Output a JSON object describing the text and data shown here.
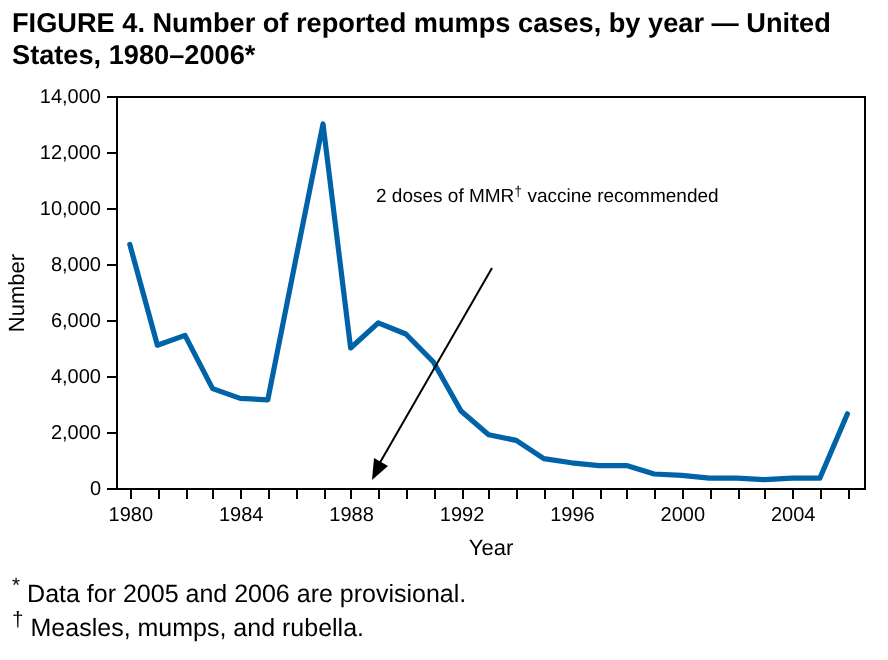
{
  "chart_data": {
    "type": "line",
    "title": "FIGURE 4. Number of reported mumps cases, by year — United States, 1980–2006*",
    "xlabel": "Year",
    "ylabel": "Number",
    "x": [
      1980,
      1981,
      1982,
      1983,
      1984,
      1985,
      1986,
      1987,
      1988,
      1989,
      1990,
      1991,
      1992,
      1993,
      1994,
      1995,
      1996,
      1997,
      1998,
      1999,
      2000,
      2001,
      2002,
      2003,
      2004,
      2005,
      2006
    ],
    "series": [
      {
        "color": "#0063a8",
        "values": [
          8700,
          5100,
          5450,
          3550,
          3200,
          3150,
          8100,
          13000,
          5000,
          5900,
          5500,
          4500,
          2750,
          1900,
          1700,
          1050,
          900,
          800,
          800,
          500,
          450,
          350,
          350,
          300,
          350,
          350,
          2650
        ]
      }
    ],
    "xlim": [
      1979.5,
      2006.6
    ],
    "xticks": [
      1980,
      {
        "value": 1981,
        "label": null
      },
      {
        "value": 1982,
        "label": null
      },
      {
        "value": 1983,
        "label": null
      },
      1984,
      {
        "value": 1985,
        "label": null
      },
      {
        "value": 1986,
        "label": null
      },
      {
        "value": 1987,
        "label": null
      },
      1988,
      {
        "value": 1989,
        "label": null
      },
      {
        "value": 1990,
        "label": null
      },
      {
        "value": 1991,
        "label": null
      },
      1992,
      {
        "value": 1993,
        "label": null
      },
      {
        "value": 1994,
        "label": null
      },
      {
        "value": 1995,
        "label": null
      },
      1996,
      {
        "value": 1997,
        "label": null
      },
      {
        "value": 1998,
        "label": null
      },
      {
        "value": 1999,
        "label": null
      },
      2000,
      {
        "value": 2001,
        "label": null
      },
      {
        "value": 2002,
        "label": null
      },
      {
        "value": 2003,
        "label": null
      },
      2004,
      {
        "value": 2005,
        "label": null
      },
      {
        "value": 2006,
        "label": null
      }
    ],
    "ylim": [
      0,
      14000
    ],
    "yticks": [
      0,
      {
        "value": 2000,
        "label": "2,000"
      },
      {
        "value": 4000,
        "label": "4,000"
      },
      {
        "value": 6000,
        "label": "6,000"
      },
      {
        "value": 8000,
        "label": "8,000"
      },
      {
        "value": 10000,
        "label": "10,000"
      },
      {
        "value": 12000,
        "label": "12,000"
      },
      {
        "value": 14000,
        "label": "14,000"
      }
    ],
    "grid": false,
    "marker": "none",
    "line_style": "solid",
    "annotations": [
      "2 doses of MMR$^{†}$ vaccine recommended",
      "$^{*}$ Data for 2005 and 2006 are provisional.",
      "$^{†}$ Measles, mumps, and rubella."
    ]
  }
}
